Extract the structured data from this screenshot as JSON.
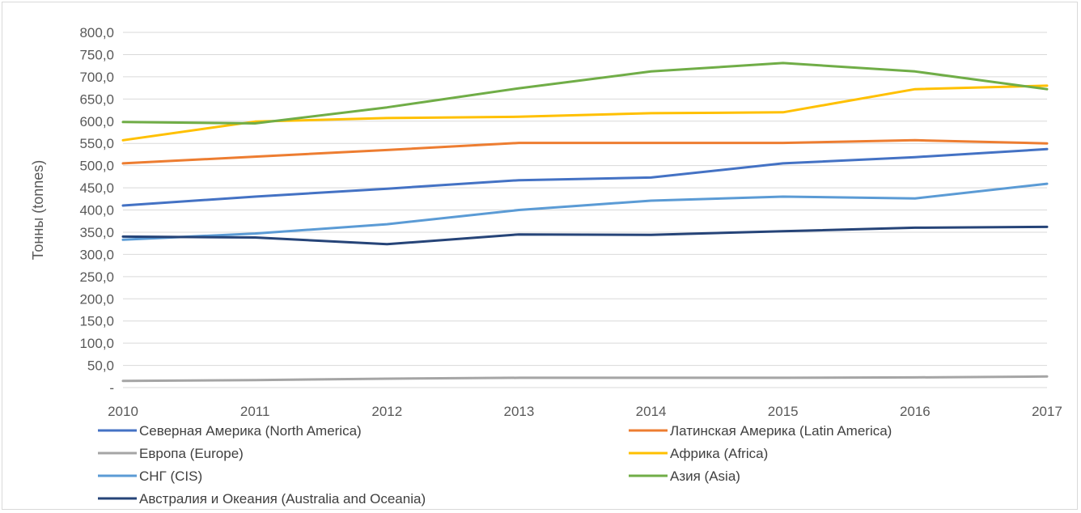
{
  "chart_data": {
    "type": "line",
    "title": "",
    "xlabel": "",
    "ylabel": "Тонны (tonnes)",
    "ylim": [
      0,
      800
    ],
    "y_tick_step": 50,
    "y_tick_labels": [
      "-",
      "50,0",
      "100,0",
      "150,0",
      "200,0",
      "250,0",
      "300,0",
      "350,0",
      "400,0",
      "450,0",
      "500,0",
      "550,0",
      "600,0",
      "650,0",
      "700,0",
      "750,0",
      "800,0"
    ],
    "x": [
      "2010",
      "2011",
      "2012",
      "2013",
      "2014",
      "2015",
      "2016",
      "2017"
    ],
    "grid": true,
    "legend_position": "bottom",
    "series": [
      {
        "name": "Северная Америка (North America)",
        "color": "#4472c4",
        "values": [
          410,
          430,
          448,
          467,
          473,
          505,
          519,
          537
        ]
      },
      {
        "name": "Латинская Америка (Latin America)",
        "color": "#ed7d31",
        "values": [
          505,
          520,
          535,
          551,
          551,
          551,
          557,
          550
        ]
      },
      {
        "name": "Европа (Europe)",
        "color": "#a5a5a5",
        "values": [
          15,
          17,
          20,
          22,
          22,
          22,
          23,
          25
        ]
      },
      {
        "name": "Африка (Africa)",
        "color": "#ffc000",
        "values": [
          557,
          599,
          607,
          610,
          618,
          620,
          672,
          680
        ]
      },
      {
        "name": "СНГ (CIS)",
        "color": "#5b9bd5",
        "values": [
          333,
          347,
          368,
          400,
          421,
          430,
          426,
          459
        ]
      },
      {
        "name": "Азия (Asia)",
        "color": "#70ad47",
        "values": [
          598,
          595,
          631,
          674,
          712,
          731,
          712,
          672
        ]
      },
      {
        "name": "Австралия и Океания (Australia and Oceania)",
        "color": "#264478",
        "values": [
          340,
          338,
          323,
          345,
          344,
          352,
          360,
          362
        ]
      }
    ]
  }
}
